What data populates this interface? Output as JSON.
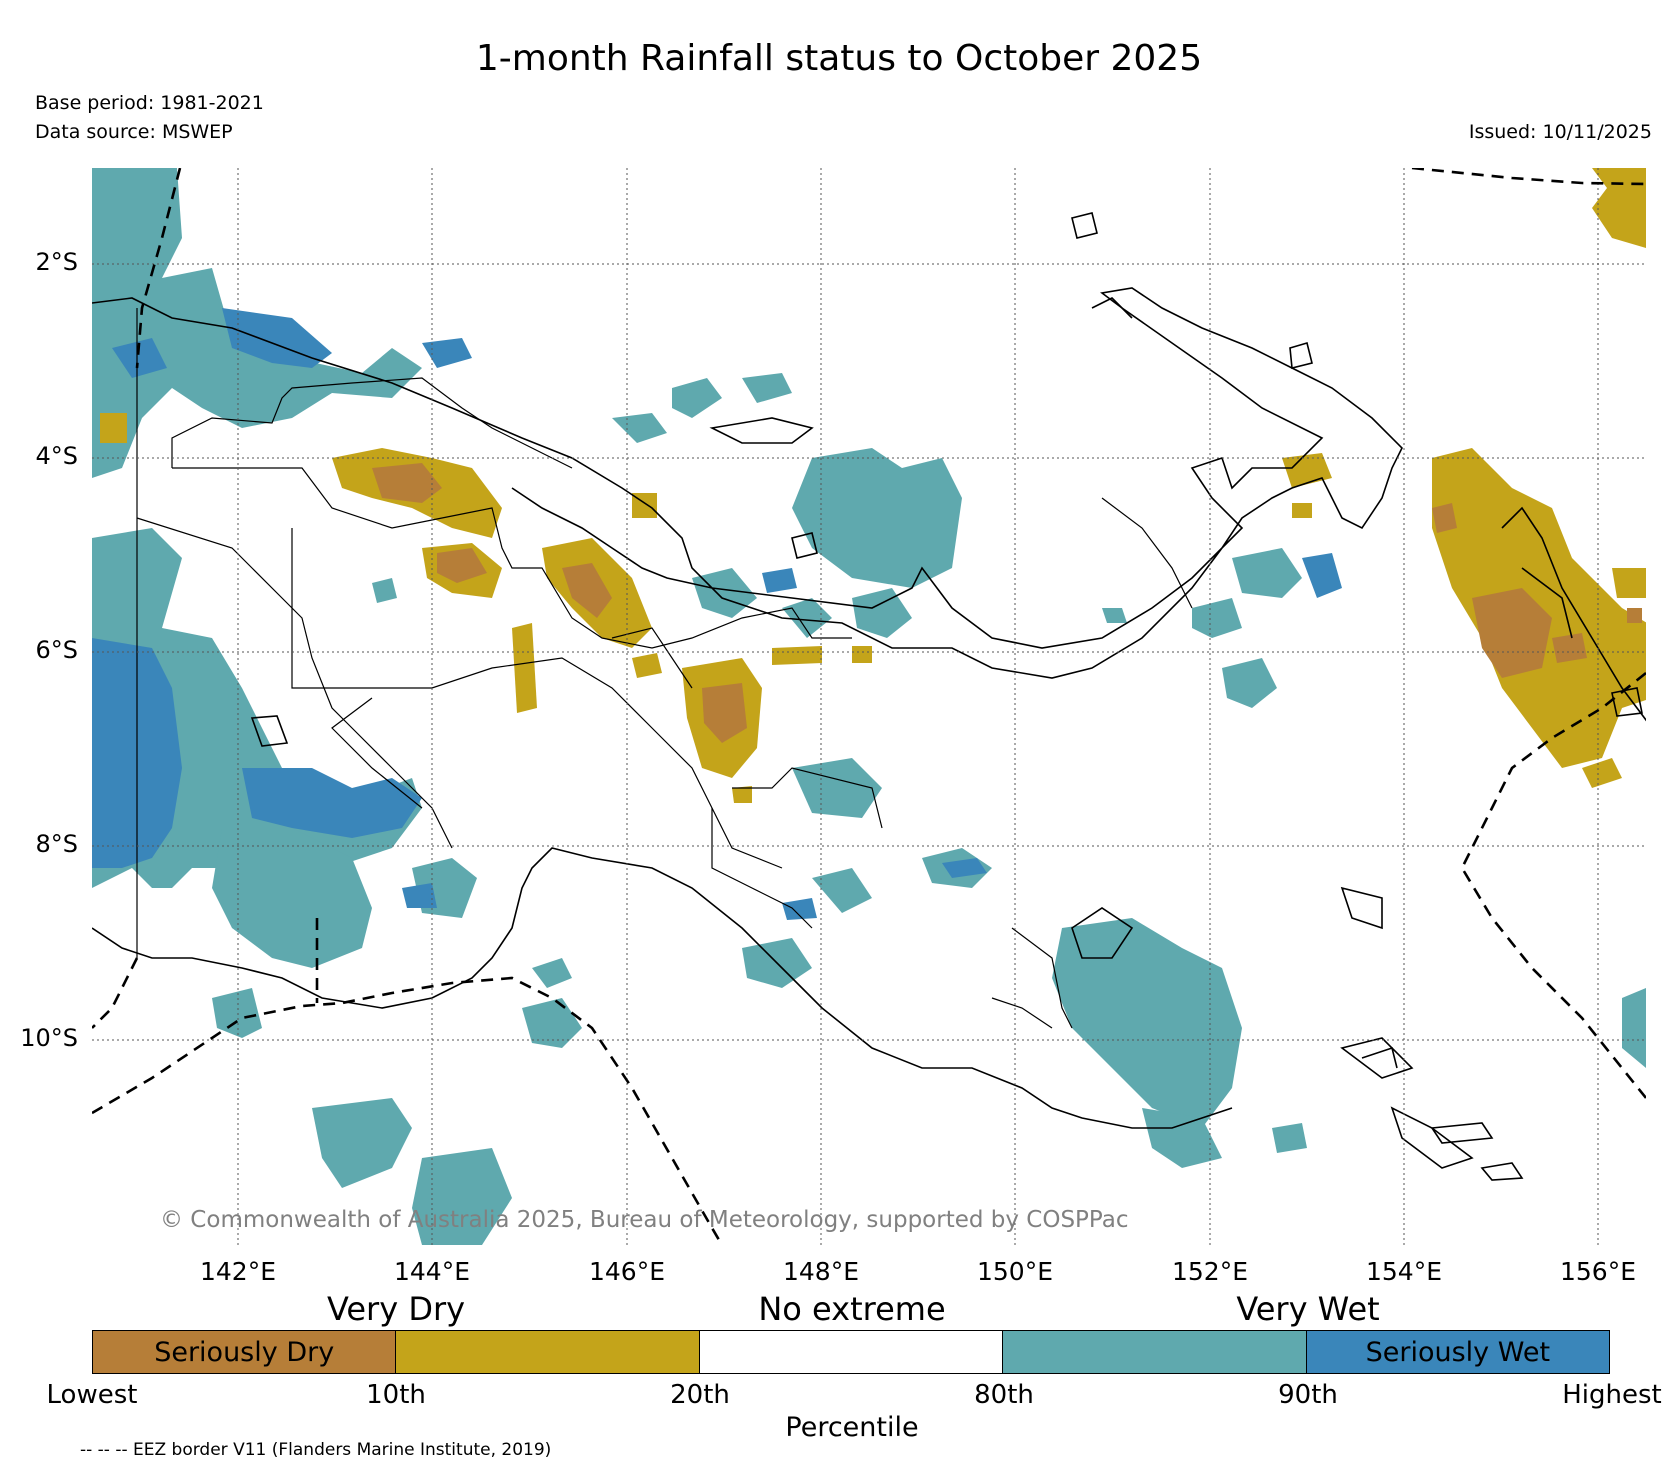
{
  "title": "1-month Rainfall status to October 2025",
  "base_period": "Base period: 1981-2021",
  "data_source": "Data source: MSWEP",
  "issued": "Issued: 10/11/2025",
  "copyright": "© Commonwealth of Australia 2025, Bureau of Meteorology, supported by COSPPac",
  "lat_labels": [
    "2°S",
    "4°S",
    "6°S",
    "8°S",
    "10°S"
  ],
  "lon_labels": [
    "142°E",
    "144°E",
    "146°E",
    "148°E",
    "150°E",
    "152°E",
    "154°E",
    "156°E"
  ],
  "legend": {
    "categories": [
      "Very Dry",
      "No extreme",
      "Very Wet"
    ],
    "segments": [
      {
        "label": "Seriously Dry",
        "color": "#b67e38"
      },
      {
        "label": "",
        "color": "#c4a41a"
      },
      {
        "label": "",
        "color": "#ffffff"
      },
      {
        "label": "",
        "color": "#5fa9ae"
      },
      {
        "label": "Seriously Wet",
        "color": "#3a86ba"
      }
    ],
    "ticks": [
      "Lowest",
      "10th",
      "20th",
      "80th",
      "90th",
      "Highest"
    ],
    "axis_label": "Percentile"
  },
  "eez_note": "-- -- -- EEZ border V11 (Flanders Marine Institute, 2019)",
  "colors": {
    "seriously_dry": "#b67e38",
    "very_dry": "#c4a41a",
    "very_wet": "#5fa9ae",
    "seriously_wet": "#3a86ba",
    "coastline": "#000000",
    "grid": "#555555"
  }
}
